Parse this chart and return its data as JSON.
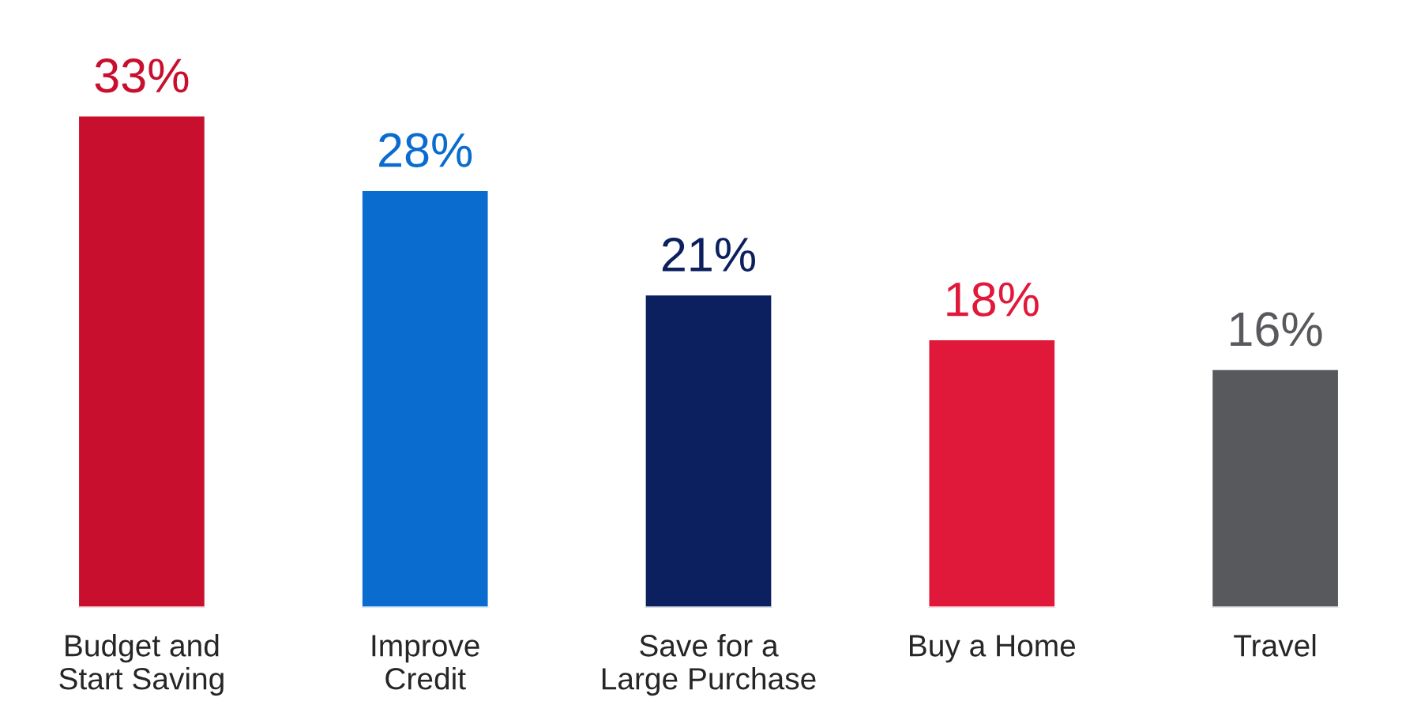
{
  "chart_data": {
    "type": "bar",
    "categories": [
      "Budget and\nStart Saving",
      "Improve\nCredit",
      "Save for a\nLarge Purchase",
      "Buy a Home",
      "Travel"
    ],
    "values": [
      33,
      28,
      21,
      18,
      16
    ],
    "colors": [
      "#c8102e",
      "#0a6ccf",
      "#0c1f5e",
      "#e0183a",
      "#58595d"
    ],
    "value_labels": [
      "33%",
      "28%",
      "21%",
      "18%",
      "16%"
    ],
    "grid": false,
    "legend": false
  }
}
